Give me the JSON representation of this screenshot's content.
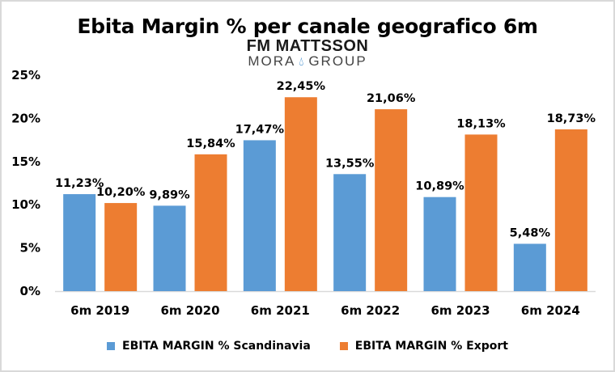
{
  "chart_data": {
    "type": "bar",
    "title": "Ebita Margin % per canale geografico 6m",
    "logo": {
      "line1": "FM MATTSSON",
      "line2_left": "MORA",
      "line2_right": "GROUP",
      "icon": "water-drop-icon"
    },
    "categories": [
      "6m 2019",
      "6m 2020",
      "6m 2021",
      "6m 2022",
      "6m 2023",
      "6m 2024"
    ],
    "series": [
      {
        "name": "EBITA MARGIN % Scandinavia",
        "color": "#5b9bd5",
        "values": [
          11.23,
          9.89,
          17.47,
          13.55,
          10.89,
          5.48
        ],
        "labels": [
          "11,23%",
          "9,89%",
          "17,47%",
          "13,55%",
          "10,89%",
          "5,48%"
        ]
      },
      {
        "name": "EBITA MARGIN % Export",
        "color": "#ed7d31",
        "values": [
          10.2,
          15.84,
          22.45,
          21.06,
          18.13,
          18.73
        ],
        "labels": [
          "10,20%",
          "15,84%",
          "22,45%",
          "21,06%",
          "18,13%",
          "18,73%"
        ]
      }
    ],
    "xlabel": "",
    "ylabel": "",
    "ylim": [
      0,
      25
    ],
    "yticks": [
      0,
      5,
      10,
      15,
      20,
      25
    ],
    "ytick_labels": [
      "0%",
      "5%",
      "10%",
      "15%",
      "20%",
      "25%"
    ],
    "grid": false,
    "legend_position": "bottom"
  }
}
